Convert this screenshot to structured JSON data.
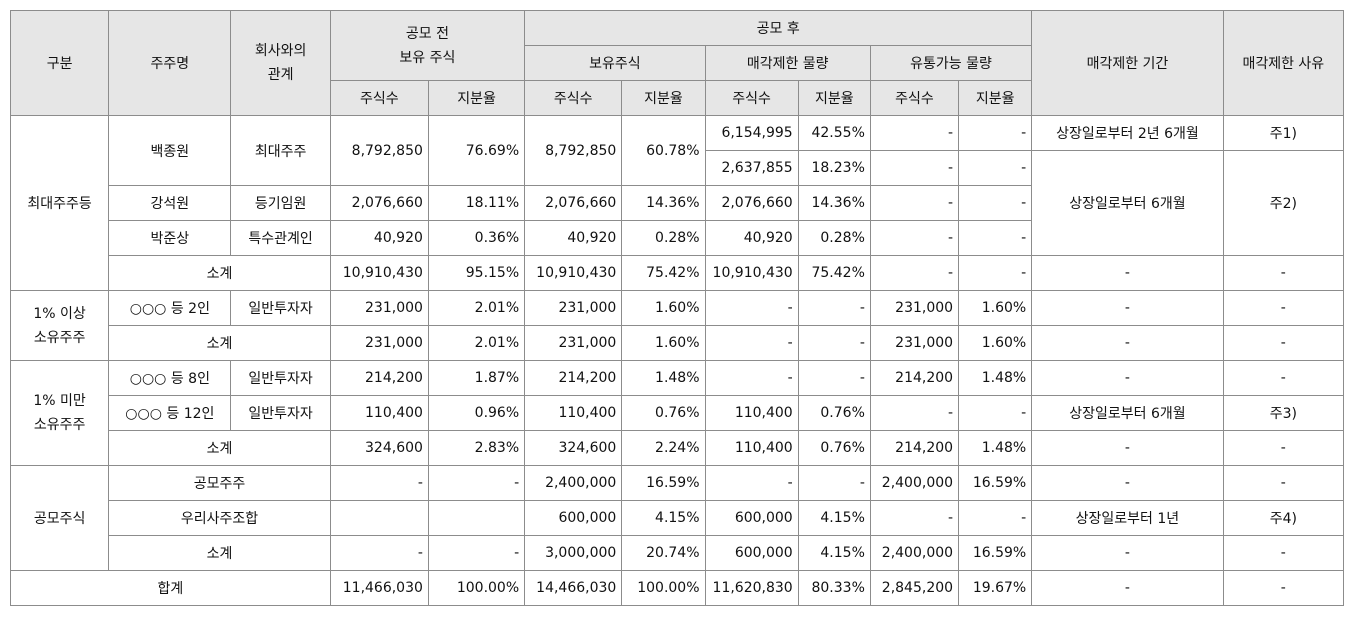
{
  "header": {
    "category": "구분",
    "holder": "주주명",
    "relation_1": "회사와의",
    "relation_2": "관계",
    "before_1": "공모 전",
    "before_2": "보유 주식",
    "after": "공모 후",
    "held": "보유주식",
    "restricted": "매각제한 물량",
    "tradable": "유통가능 물량",
    "period": "매각제한 기간",
    "reason": "매각제한 사유",
    "shares": "주식수",
    "ratio": "지분율"
  },
  "rows": {
    "g1_label": "최대주주등",
    "r1": {
      "name": "백종원",
      "rel": "최대주주",
      "b_sh": "8,792,850",
      "b_rt": "76.69%",
      "h_sh": "8,792,850",
      "h_rt": "60.78%",
      "rs_a": "6,154,995",
      "rr_a": "42.55%",
      "t_sh_a": "-",
      "t_rt_a": "-",
      "period_a": "상장일로부터 2년 6개월",
      "reason_a": "주1)",
      "rs_b": "2,637,855",
      "rr_b": "18.23%",
      "t_sh_b": "-",
      "t_rt_b": "-"
    },
    "r2": {
      "name": "강석원",
      "rel": "등기임원",
      "b_sh": "2,076,660",
      "b_rt": "18.11%",
      "h_sh": "2,076,660",
      "h_rt": "14.36%",
      "rs": "2,076,660",
      "rr": "14.36%",
      "t_sh": "-",
      "t_rt": "-",
      "period": "상장일로부터 6개월",
      "reason": "주2)"
    },
    "r3": {
      "name": "박준상",
      "rel": "특수관계인",
      "b_sh": "40,920",
      "b_rt": "0.36%",
      "h_sh": "40,920",
      "h_rt": "0.28%",
      "rs": "40,920",
      "rr": "0.28%",
      "t_sh": "-",
      "t_rt": "-"
    },
    "s1": {
      "label": "소계",
      "b_sh": "10,910,430",
      "b_rt": "95.15%",
      "h_sh": "10,910,430",
      "h_rt": "75.42%",
      "rs": "10,910,430",
      "rr": "75.42%",
      "t_sh": "-",
      "t_rt": "-",
      "period": "-",
      "reason": "-"
    },
    "g2_label_1": "1% 이상",
    "g2_label_2": "소유주주",
    "r4": {
      "name": "○○○ 등 2인",
      "rel": "일반투자자",
      "b_sh": "231,000",
      "b_rt": "2.01%",
      "h_sh": "231,000",
      "h_rt": "1.60%",
      "rs": "-",
      "rr": "-",
      "t_sh": "231,000",
      "t_rt": "1.60%",
      "period": "-",
      "reason": "-"
    },
    "s2": {
      "label": "소계",
      "b_sh": "231,000",
      "b_rt": "2.01%",
      "h_sh": "231,000",
      "h_rt": "1.60%",
      "rs": "-",
      "rr": "-",
      "t_sh": "231,000",
      "t_rt": "1.60%",
      "period": "-",
      "reason": "-"
    },
    "g3_label_1": "1% 미만",
    "g3_label_2": "소유주주",
    "r5": {
      "name": "○○○ 등 8인",
      "rel": "일반투자자",
      "b_sh": "214,200",
      "b_rt": "1.87%",
      "h_sh": "214,200",
      "h_rt": "1.48%",
      "rs": "-",
      "rr": "-",
      "t_sh": "214,200",
      "t_rt": "1.48%",
      "period": "-",
      "reason": "-"
    },
    "r6": {
      "name": "○○○ 등 12인",
      "rel": "일반투자자",
      "b_sh": "110,400",
      "b_rt": "0.96%",
      "h_sh": "110,400",
      "h_rt": "0.76%",
      "rs": "110,400",
      "rr": "0.76%",
      "t_sh": "-",
      "t_rt": "-",
      "period": "상장일로부터 6개월",
      "reason": "주3)"
    },
    "s3": {
      "label": "소계",
      "b_sh": "324,600",
      "b_rt": "2.83%",
      "h_sh": "324,600",
      "h_rt": "2.24%",
      "rs": "110,400",
      "rr": "0.76%",
      "t_sh": "214,200",
      "t_rt": "1.48%",
      "period": "-",
      "reason": "-"
    },
    "g4_label": "공모주식",
    "r7": {
      "name": "공모주주",
      "b_sh": "-",
      "b_rt": "-",
      "h_sh": "2,400,000",
      "h_rt": "16.59%",
      "rs": "-",
      "rr": "-",
      "t_sh": "2,400,000",
      "t_rt": "16.59%",
      "period": "-",
      "reason": "-"
    },
    "r8": {
      "name": "우리사주조합",
      "b_sh": "",
      "b_rt": "",
      "h_sh": "600,000",
      "h_rt": "4.15%",
      "rs": "600,000",
      "rr": "4.15%",
      "t_sh": "-",
      "t_rt": "-",
      "period": "상장일로부터 1년",
      "reason": "주4)"
    },
    "s4": {
      "label": "소계",
      "b_sh": "-",
      "b_rt": "-",
      "h_sh": "3,000,000",
      "h_rt": "20.74%",
      "rs": "600,000",
      "rr": "4.15%",
      "t_sh": "2,400,000",
      "t_rt": "16.59%",
      "period": "-",
      "reason": "-"
    },
    "total": {
      "label": "합계",
      "b_sh": "11,466,030",
      "b_rt": "100.00%",
      "h_sh": "14,466,030",
      "h_rt": "100.00%",
      "rs": "11,620,830",
      "rr": "80.33%",
      "t_sh": "2,845,200",
      "t_rt": "19.67%",
      "period": "-",
      "reason": "-"
    }
  }
}
